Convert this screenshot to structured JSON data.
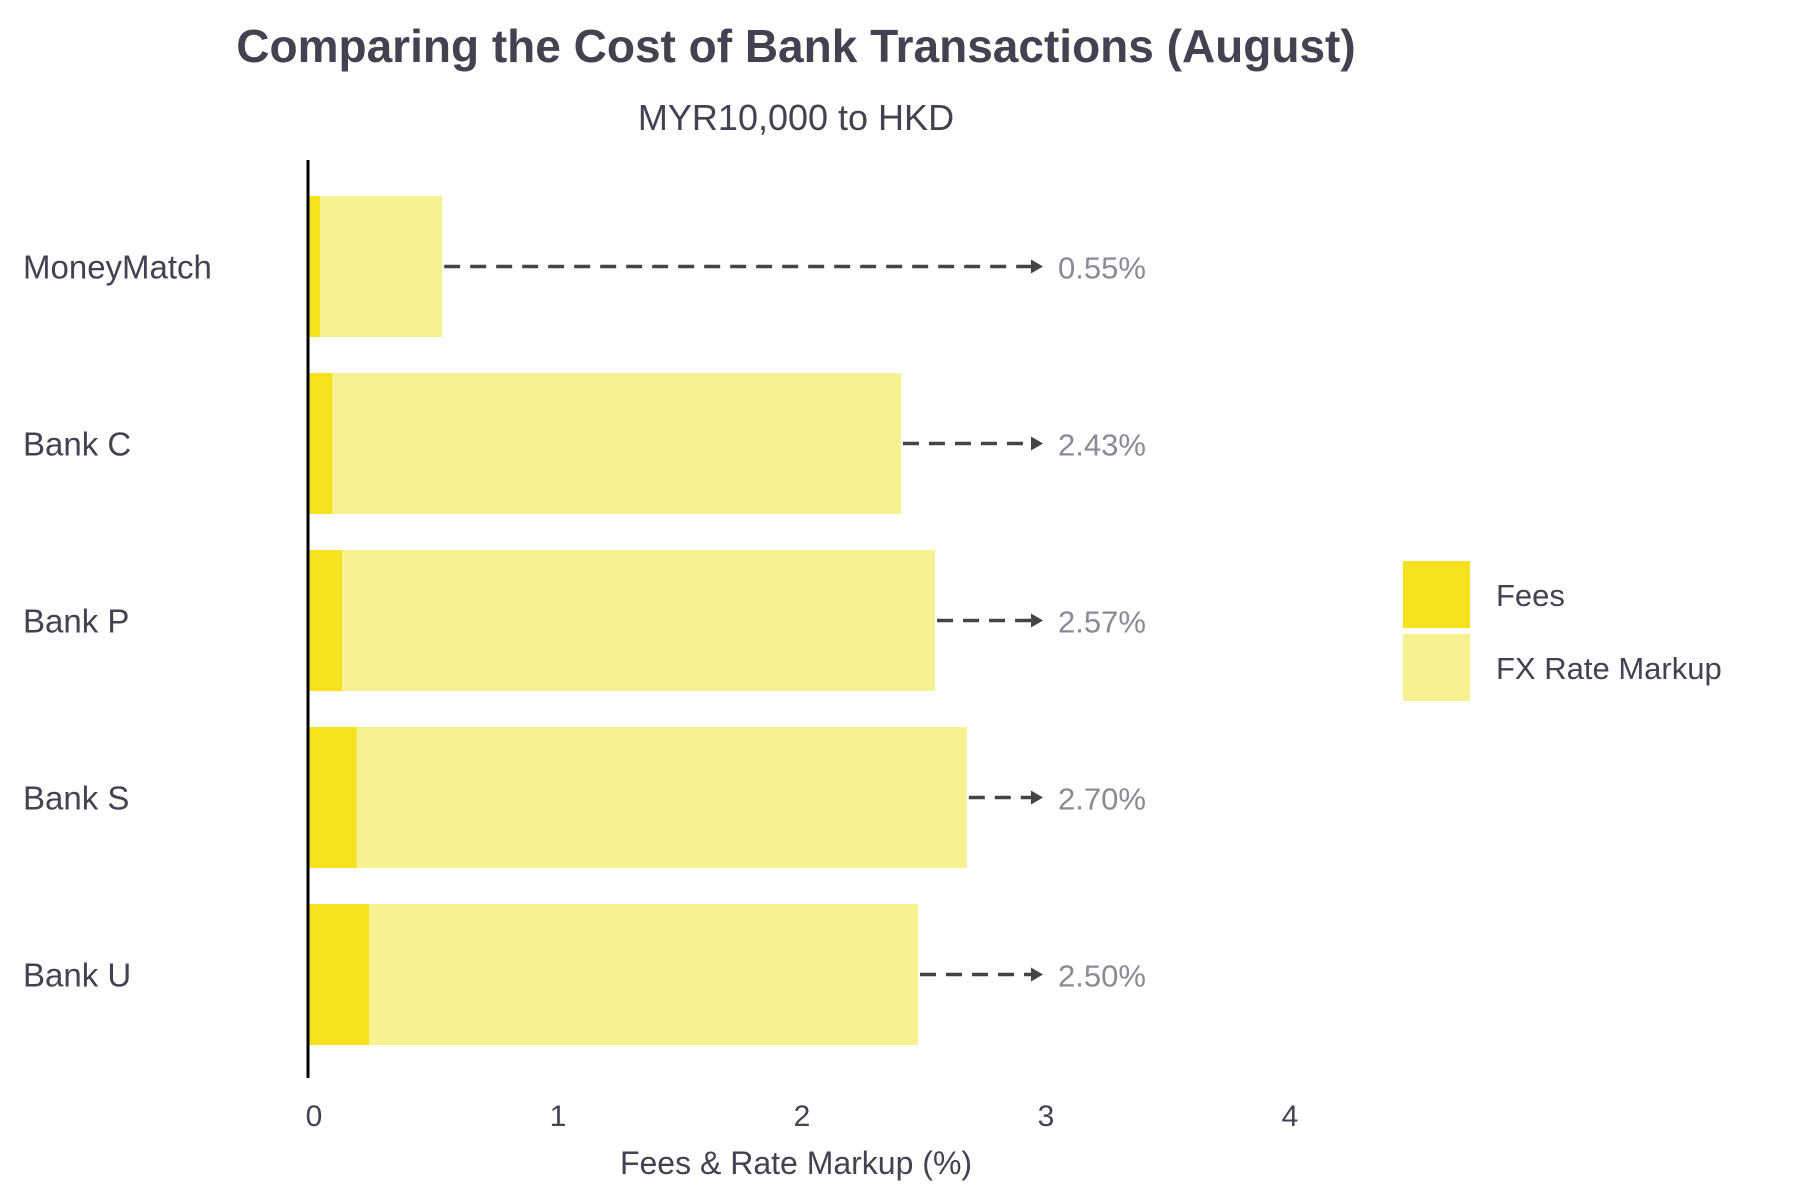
{
  "chart_data": {
    "type": "bar",
    "orientation": "horizontal",
    "stacked": true,
    "title": "Comparing the Cost of Bank Transactions (August)",
    "subtitle": "MYR10,000 to HKD",
    "xlabel": "Fees & Rate Markup (%)",
    "ylabel": "",
    "xlim": [
      0,
      4
    ],
    "xticks": [
      "0",
      "1",
      "2",
      "3",
      "4"
    ],
    "categories": [
      "MoneyMatch",
      "Bank C",
      "Bank P",
      "Bank S",
      "Bank U"
    ],
    "series": [
      {
        "name": "Fees",
        "color": "#f5e11d",
        "values": [
          0.05,
          0.1,
          0.14,
          0.2,
          0.25
        ]
      },
      {
        "name": "FX Rate Markup",
        "color": "#f6f291",
        "values": [
          0.5,
          2.33,
          2.43,
          2.5,
          2.25
        ]
      }
    ],
    "totals": [
      "0.55%",
      "2.43%",
      "2.57%",
      "2.70%",
      "2.50%"
    ],
    "total_label_x": 3,
    "grid": false,
    "legend": "right"
  }
}
